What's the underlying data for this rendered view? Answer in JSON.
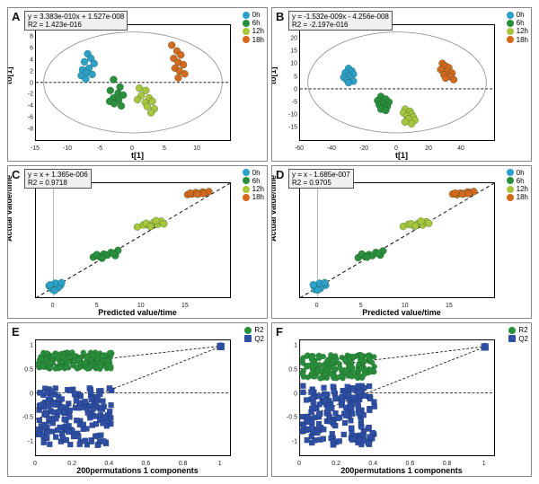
{
  "panels": {
    "A": {
      "label": "A",
      "type": "scatter",
      "eq_line1": "y = 3.383e-010x + 1.527e-008",
      "eq_line2": "R2 = 1.423e-016",
      "xlabel": "t[1]",
      "ylabel": "to[1]",
      "xlim": [
        -15,
        15
      ],
      "ylim": [
        -10,
        10
      ],
      "xticks": [
        -15,
        -10,
        -5,
        0,
        5,
        10
      ],
      "yticks": [
        -8,
        -6,
        -4,
        -2,
        0,
        2,
        4,
        6,
        8
      ],
      "zero_line_y": true,
      "ellipse": true,
      "legend_pos": "top-right",
      "legend": [
        {
          "label": "0h",
          "color": "#2ca0c9",
          "shape": "circle"
        },
        {
          "label": "6h",
          "color": "#2a8f3c",
          "shape": "circle"
        },
        {
          "label": "12h",
          "color": "#a7c63e",
          "shape": "circle"
        },
        {
          "label": "18h",
          "color": "#d2691e",
          "shape": "circle"
        }
      ],
      "series": [
        {
          "color": "#2ca0c9",
          "points": [
            [
              -7,
              5
            ],
            [
              -6.5,
              4.2
            ],
            [
              -7.5,
              3.6
            ],
            [
              -6,
              3.3
            ],
            [
              -6.8,
              2.5
            ],
            [
              -7.8,
              2.2
            ],
            [
              -7.2,
              1.7
            ],
            [
              -6.3,
              1.4
            ],
            [
              -8,
              1.2
            ],
            [
              -7.3,
              0.6
            ]
          ]
        },
        {
          "color": "#2a8f3c",
          "points": [
            [
              -3,
              0.5
            ],
            [
              -2,
              -0.8
            ],
            [
              -3.5,
              -1.4
            ],
            [
              -2.3,
              -1.9
            ],
            [
              -1.5,
              -2.2
            ],
            [
              -3,
              -2.7
            ],
            [
              -2.2,
              -3.1
            ],
            [
              -3.6,
              -3.3
            ],
            [
              -2.9,
              -3.7
            ],
            [
              -1.8,
              -4.1
            ]
          ]
        },
        {
          "color": "#a7c63e",
          "points": [
            [
              1,
              -1
            ],
            [
              2,
              -1.4
            ],
            [
              1.3,
              -2.3
            ],
            [
              2.5,
              -2.7
            ],
            [
              0.7,
              -3
            ],
            [
              1.9,
              -3.5
            ],
            [
              3,
              -3.3
            ],
            [
              2.2,
              -4.2
            ],
            [
              3.3,
              -4.6
            ],
            [
              2.8,
              -5.3
            ]
          ]
        },
        {
          "color": "#d2691e",
          "points": [
            [
              6,
              6.5
            ],
            [
              6.8,
              5.5
            ],
            [
              7.4,
              4.8
            ],
            [
              6.3,
              4.2
            ],
            [
              7,
              3.5
            ],
            [
              7.8,
              3.1
            ],
            [
              6.5,
              2.5
            ],
            [
              7.2,
              2
            ],
            [
              8,
              1.5
            ],
            [
              7,
              0.8
            ]
          ]
        }
      ]
    },
    "B": {
      "label": "B",
      "type": "scatter",
      "eq_line1": "y = -1.532e-009x - 4.256e-008",
      "eq_line2": "R2 = -2.197e-016",
      "xlabel": "t[1]",
      "ylabel": "to[1]",
      "xlim": [
        -60,
        60
      ],
      "ylim": [
        -20,
        25
      ],
      "xticks": [
        -60,
        -40,
        -20,
        0,
        20,
        40
      ],
      "yticks": [
        -15,
        -10,
        -5,
        0,
        5,
        10,
        15,
        20
      ],
      "zero_line_y": true,
      "ellipse": true,
      "legend_pos": "top-right",
      "legend": [
        {
          "label": "0h",
          "color": "#2ca0c9",
          "shape": "circle"
        },
        {
          "label": "6h",
          "color": "#2a8f3c",
          "shape": "circle"
        },
        {
          "label": "12h",
          "color": "#a7c63e",
          "shape": "circle"
        },
        {
          "label": "18h",
          "color": "#d2691e",
          "shape": "circle"
        }
      ],
      "series": [
        {
          "color": "#2ca0c9",
          "points": [
            [
              -30,
              8
            ],
            [
              -28,
              7
            ],
            [
              -32,
              6.3
            ],
            [
              -27,
              5.8
            ],
            [
              -30,
              5.1
            ],
            [
              -33,
              4.5
            ],
            [
              -29,
              4.2
            ],
            [
              -31,
              3.4
            ],
            [
              -27,
              3
            ],
            [
              -30,
              2.4
            ]
          ]
        },
        {
          "color": "#2a8f3c",
          "points": [
            [
              -10,
              -3
            ],
            [
              -7,
              -4
            ],
            [
              -12,
              -4.6
            ],
            [
              -5,
              -5.2
            ],
            [
              -9,
              -5.8
            ],
            [
              -11,
              -6.3
            ],
            [
              -6,
              -6.9
            ],
            [
              -8,
              -7.5
            ],
            [
              -10,
              -8
            ],
            [
              -7,
              -8.5
            ]
          ]
        },
        {
          "color": "#a7c63e",
          "points": [
            [
              5,
              -8
            ],
            [
              8,
              -8.8
            ],
            [
              4,
              -9.4
            ],
            [
              9,
              -10
            ],
            [
              6,
              -10.6
            ],
            [
              10,
              -11.1
            ],
            [
              7,
              -11.8
            ],
            [
              11,
              -12.3
            ],
            [
              5,
              -13
            ],
            [
              9,
              -13.7
            ]
          ]
        },
        {
          "color": "#d2691e",
          "points": [
            [
              28,
              10
            ],
            [
              30,
              9
            ],
            [
              32,
              8.3
            ],
            [
              27,
              7.5
            ],
            [
              31,
              6.8
            ],
            [
              34,
              6.2
            ],
            [
              29,
              5.5
            ],
            [
              33,
              4.8
            ],
            [
              30,
              4.2
            ],
            [
              35,
              3.6
            ]
          ]
        }
      ]
    },
    "C": {
      "label": "C",
      "type": "scatter-diag",
      "eq_line1": "y = x + 1.365e-006",
      "eq_line2": "R2 = 0.9718",
      "xlabel": "Predicted value/time",
      "ylabel": "Actual value/time",
      "xlim": [
        -2,
        20
      ],
      "ylim": [
        -2,
        20
      ],
      "xticks": [
        0,
        5,
        10,
        15
      ],
      "yticks": [],
      "zero_line_y": false,
      "diag_line": true,
      "legend_pos": "top-right",
      "legend": [
        {
          "label": "0h",
          "color": "#2ca0c9",
          "shape": "circle"
        },
        {
          "label": "6h",
          "color": "#2a8f3c",
          "shape": "circle"
        },
        {
          "label": "12h",
          "color": "#a7c63e",
          "shape": "circle"
        },
        {
          "label": "18h",
          "color": "#d2691e",
          "shape": "circle"
        }
      ],
      "series": [
        {
          "color": "#2ca0c9",
          "points": [
            [
              -0.5,
              0.3
            ],
            [
              0,
              0.1
            ],
            [
              0.4,
              0.6
            ],
            [
              0.8,
              0.4
            ],
            [
              -0.2,
              -0.3
            ],
            [
              0.5,
              -0.1
            ],
            [
              0.2,
              0.8
            ],
            [
              0.9,
              0.9
            ],
            [
              0.1,
              -0.6
            ],
            [
              -0.4,
              0.5
            ]
          ]
        },
        {
          "color": "#2a8f3c",
          "points": [
            [
              4.5,
              5.8
            ],
            [
              5.2,
              5.9
            ],
            [
              5.7,
              6.4
            ],
            [
              6.1,
              6.2
            ],
            [
              6.5,
              6.7
            ],
            [
              7,
              6.1
            ],
            [
              7.3,
              7.1
            ],
            [
              4.9,
              6.3
            ],
            [
              5.5,
              5.6
            ],
            [
              6.8,
              6.5
            ]
          ]
        },
        {
          "color": "#a7c63e",
          "points": [
            [
              9.5,
              11.6
            ],
            [
              10.2,
              12
            ],
            [
              10.8,
              11.9
            ],
            [
              11.3,
              12.4
            ],
            [
              11.8,
              12.1
            ],
            [
              12.2,
              12.7
            ],
            [
              10.5,
              12.3
            ],
            [
              11,
              11.7
            ],
            [
              11.6,
              12.8
            ],
            [
              12.5,
              12.2
            ]
          ]
        },
        {
          "color": "#d2691e",
          "points": [
            [
              15.2,
              17.8
            ],
            [
              15.7,
              17.9
            ],
            [
              16.1,
              18.2
            ],
            [
              16.5,
              18
            ],
            [
              16.9,
              18.3
            ],
            [
              17.2,
              18.1
            ],
            [
              17.6,
              18.4
            ],
            [
              15.5,
              18.1
            ],
            [
              16.3,
              17.9
            ],
            [
              17,
              18
            ]
          ]
        }
      ]
    },
    "D": {
      "label": "D",
      "type": "scatter-diag",
      "eq_line1": "y = x - 1.685e-007",
      "eq_line2": "R2 = 0.9705",
      "xlabel": "Predicted value/time",
      "ylabel": "Actual value/time",
      "xlim": [
        -2,
        20
      ],
      "ylim": [
        -2,
        20
      ],
      "xticks": [
        0,
        5,
        10,
        15
      ],
      "yticks": [],
      "zero_line_y": false,
      "diag_line": true,
      "legend_pos": "top-right",
      "legend": [
        {
          "label": "0h",
          "color": "#2ca0c9",
          "shape": "circle"
        },
        {
          "label": "6h",
          "color": "#2a8f3c",
          "shape": "circle"
        },
        {
          "label": "12h",
          "color": "#a7c63e",
          "shape": "circle"
        },
        {
          "label": "18h",
          "color": "#d2691e",
          "shape": "circle"
        }
      ],
      "series": [
        {
          "color": "#2ca0c9",
          "points": [
            [
              -0.4,
              0.2
            ],
            [
              0.1,
              0.3
            ],
            [
              0.5,
              0.6
            ],
            [
              0.9,
              0.4
            ],
            [
              -0.3,
              -0.4
            ],
            [
              0.3,
              -0.2
            ],
            [
              0.2,
              0.8
            ],
            [
              0.8,
              0.9
            ],
            [
              0,
              -0.5
            ],
            [
              -0.5,
              0.5
            ]
          ]
        },
        {
          "color": "#2a8f3c",
          "points": [
            [
              4.6,
              5.7
            ],
            [
              5.3,
              6
            ],
            [
              5.8,
              6.3
            ],
            [
              6.2,
              6.1
            ],
            [
              6.6,
              6.7
            ],
            [
              7.1,
              6.2
            ],
            [
              7.4,
              7
            ],
            [
              5,
              6.4
            ],
            [
              5.6,
              5.8
            ],
            [
              6.9,
              6.5
            ]
          ]
        },
        {
          "color": "#a7c63e",
          "points": [
            [
              9.7,
              11.7
            ],
            [
              10.3,
              12.1
            ],
            [
              10.9,
              11.8
            ],
            [
              11.4,
              12.3
            ],
            [
              11.9,
              12
            ],
            [
              12.3,
              12.6
            ],
            [
              10.6,
              12.2
            ],
            [
              11.1,
              11.8
            ],
            [
              11.7,
              12.7
            ],
            [
              12.6,
              12.3
            ]
          ]
        },
        {
          "color": "#d2691e",
          "points": [
            [
              15.3,
              17.9
            ],
            [
              15.8,
              17.8
            ],
            [
              16.2,
              18.1
            ],
            [
              16.6,
              18
            ],
            [
              17,
              18.3
            ],
            [
              17.3,
              18.2
            ],
            [
              17.7,
              18.4
            ],
            [
              15.6,
              18.1
            ],
            [
              16.4,
              17.9
            ],
            [
              17.1,
              18
            ]
          ]
        }
      ]
    },
    "E": {
      "label": "E",
      "type": "permutation",
      "eq_line1": "",
      "eq_line2": "",
      "xlabel": "200permutations 1 components",
      "ylabel": "",
      "xlim": [
        0,
        1.05
      ],
      "ylim": [
        -1.3,
        1.1
      ],
      "xticks": [
        0,
        0.2,
        0.4,
        0.6,
        0.8,
        1
      ],
      "yticks": [
        -1,
        -0.5,
        0,
        0.5,
        1
      ],
      "zero_line_y": true,
      "legend_pos": "top-right",
      "legend": [
        {
          "label": "R2",
          "color": "#2a8f3c",
          "shape": "circle"
        },
        {
          "label": "Q2",
          "color": "#2e4fa3",
          "shape": "square"
        }
      ],
      "perm_green_ref": [
        1,
        0.98
      ],
      "perm_blue_ref": [
        1,
        0.97
      ],
      "perm_green_intercept": 0.55,
      "perm_blue_intercept": -0.55,
      "perm_green_cloud_y": [
        0.5,
        0.85
      ],
      "perm_blue_cloud_y": [
        -1.1,
        0.1
      ],
      "perm_cloud_xmax": 0.4
    },
    "F": {
      "label": "F",
      "type": "permutation",
      "eq_line1": "",
      "eq_line2": "",
      "xlabel": "200permutations 1 components",
      "ylabel": "",
      "xlim": [
        0,
        1.05
      ],
      "ylim": [
        -1.3,
        1.1
      ],
      "xticks": [
        0,
        0.2,
        0.4,
        0.6,
        0.8,
        1
      ],
      "yticks": [
        -1,
        -0.5,
        0,
        0.5,
        1
      ],
      "zero_line_y": true,
      "legend_pos": "top-right",
      "legend": [
        {
          "label": "R2",
          "color": "#2a8f3c",
          "shape": "circle"
        },
        {
          "label": "Q2",
          "color": "#2e4fa3",
          "shape": "square"
        }
      ],
      "perm_green_ref": [
        1,
        0.97
      ],
      "perm_blue_ref": [
        1,
        0.96
      ],
      "perm_green_intercept": 0.5,
      "perm_blue_intercept": -0.55,
      "perm_green_cloud_y": [
        0.3,
        0.8
      ],
      "perm_blue_cloud_y": [
        -1.1,
        0.15
      ],
      "perm_cloud_xmax": 0.4
    }
  },
  "marker_r": 4,
  "marker_r_small": 3,
  "colors": {
    "ellipse": "#888888",
    "zero_line": "#000000",
    "grid": "#dddddd",
    "axis": "#000000"
  }
}
